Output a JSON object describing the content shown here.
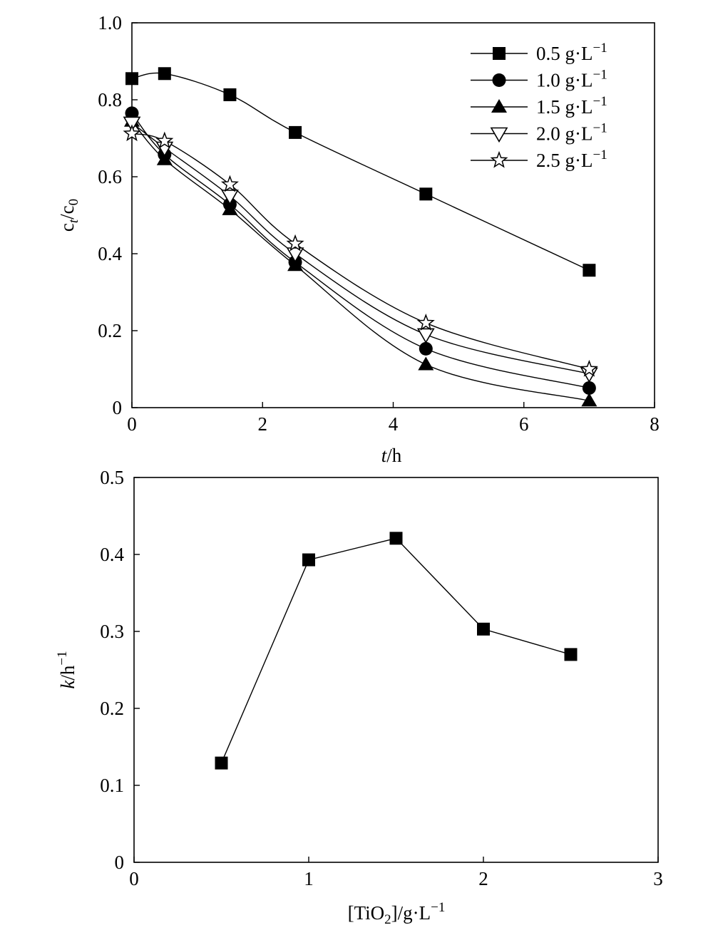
{
  "chart_data": [
    {
      "type": "scatter",
      "xlabel_italic": "t",
      "xlabel_rest": "/h",
      "ylabel_main": "c",
      "ylabel_sub1": "t",
      "ylabel_mid": "/c",
      "ylabel_sub2": "0",
      "xlim": [
        0,
        8
      ],
      "ylim": [
        0,
        1.0
      ],
      "x_ticks": [
        "0",
        "2",
        "4",
        "6",
        "8"
      ],
      "y_ticks": [
        "0",
        "0.2",
        "0.4",
        "0.6",
        "0.8",
        "1.0"
      ],
      "grid": false,
      "legend_position": "top-right",
      "legend_unit": "g·L",
      "legend_sup": "−1",
      "series": [
        {
          "name": "0.5",
          "marker": "square-filled",
          "points": [
            [
              0,
              0.855
            ],
            [
              0.5,
              0.868
            ],
            [
              1.5,
              0.813
            ],
            [
              2.5,
              0.715
            ],
            [
              4.5,
              0.555
            ],
            [
              7,
              0.357
            ]
          ]
        },
        {
          "name": "1.0",
          "marker": "circle-filled",
          "points": [
            [
              0,
              0.765
            ],
            [
              0.5,
              0.658
            ],
            [
              1.5,
              0.528
            ],
            [
              2.5,
              0.378
            ],
            [
              4.5,
              0.153
            ],
            [
              7,
              0.051
            ]
          ]
        },
        {
          "name": "1.5",
          "marker": "triangle-up-filled",
          "points": [
            [
              0,
              0.745
            ],
            [
              0.5,
              0.645
            ],
            [
              1.5,
              0.515
            ],
            [
              2.5,
              0.37
            ],
            [
              4.5,
              0.112
            ],
            [
              7,
              0.018
            ]
          ]
        },
        {
          "name": "2.0",
          "marker": "triangle-down-open",
          "points": [
            [
              0,
              0.74
            ],
            [
              0.5,
              0.675
            ],
            [
              1.5,
              0.55
            ],
            [
              2.5,
              0.4
            ],
            [
              4.5,
              0.19
            ],
            [
              7,
              0.088
            ]
          ]
        },
        {
          "name": "2.5",
          "marker": "star-open",
          "points": [
            [
              0,
              0.712
            ],
            [
              0.5,
              0.693
            ],
            [
              1.5,
              0.58
            ],
            [
              2.5,
              0.426
            ],
            [
              4.5,
              0.22
            ],
            [
              7,
              0.1
            ]
          ]
        }
      ]
    },
    {
      "type": "line",
      "xlabel_pre": "[TiO",
      "xlabel_sub": "2",
      "xlabel_post": "]/g·L",
      "xlabel_sup": "−1",
      "ylabel_italic": "k",
      "ylabel_rest": "/h",
      "ylabel_sup": "−1",
      "xlim": [
        0,
        3
      ],
      "ylim": [
        0,
        0.5
      ],
      "x_ticks": [
        "0",
        "1",
        "2",
        "3"
      ],
      "y_ticks": [
        "0",
        "0.1",
        "0.2",
        "0.3",
        "0.4",
        "0.5"
      ],
      "grid": false,
      "series": [
        {
          "marker": "square-filled",
          "points": [
            [
              0.5,
              0.129
            ],
            [
              1.0,
              0.393
            ],
            [
              1.5,
              0.421
            ],
            [
              2.0,
              0.303
            ],
            [
              2.5,
              0.27
            ]
          ]
        }
      ]
    }
  ]
}
